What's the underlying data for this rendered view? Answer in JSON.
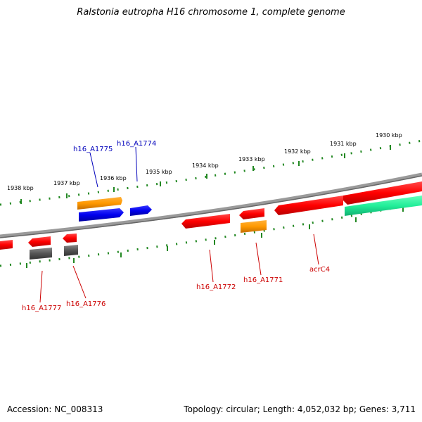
{
  "title": "Ralstonia eutropha H16 chromosome 1, complete genome",
  "footer": {
    "accession": "Accession: NC_008313",
    "summary": "Topology: circular; Length: 4,052,032 bp; Genes: 3,711"
  },
  "kbp_labels": [
    "1938 kbp",
    "1937 kbp",
    "1936 kbp",
    "1935 kbp",
    "1934 kbp",
    "1933 kbp",
    "1932 kbp",
    "1931 kbp",
    "1930 kbp"
  ],
  "gene_labels": {
    "h16_A1775": "h16_A1775",
    "h16_A1774": "h16_A1774",
    "h16_A1777": "h16_A1777",
    "h16_A1776": "h16_A1776",
    "h16_A1772": "h16_A1772",
    "h16_A1771": "h16_A1771",
    "acrC4": "acrC4"
  },
  "colors": {
    "red": "#ff0000",
    "orange": "#ff9900",
    "blue": "#0000ee",
    "gray": "#555555",
    "green": "#22ee99",
    "tick": "#228822",
    "backbone": "#888888"
  }
}
